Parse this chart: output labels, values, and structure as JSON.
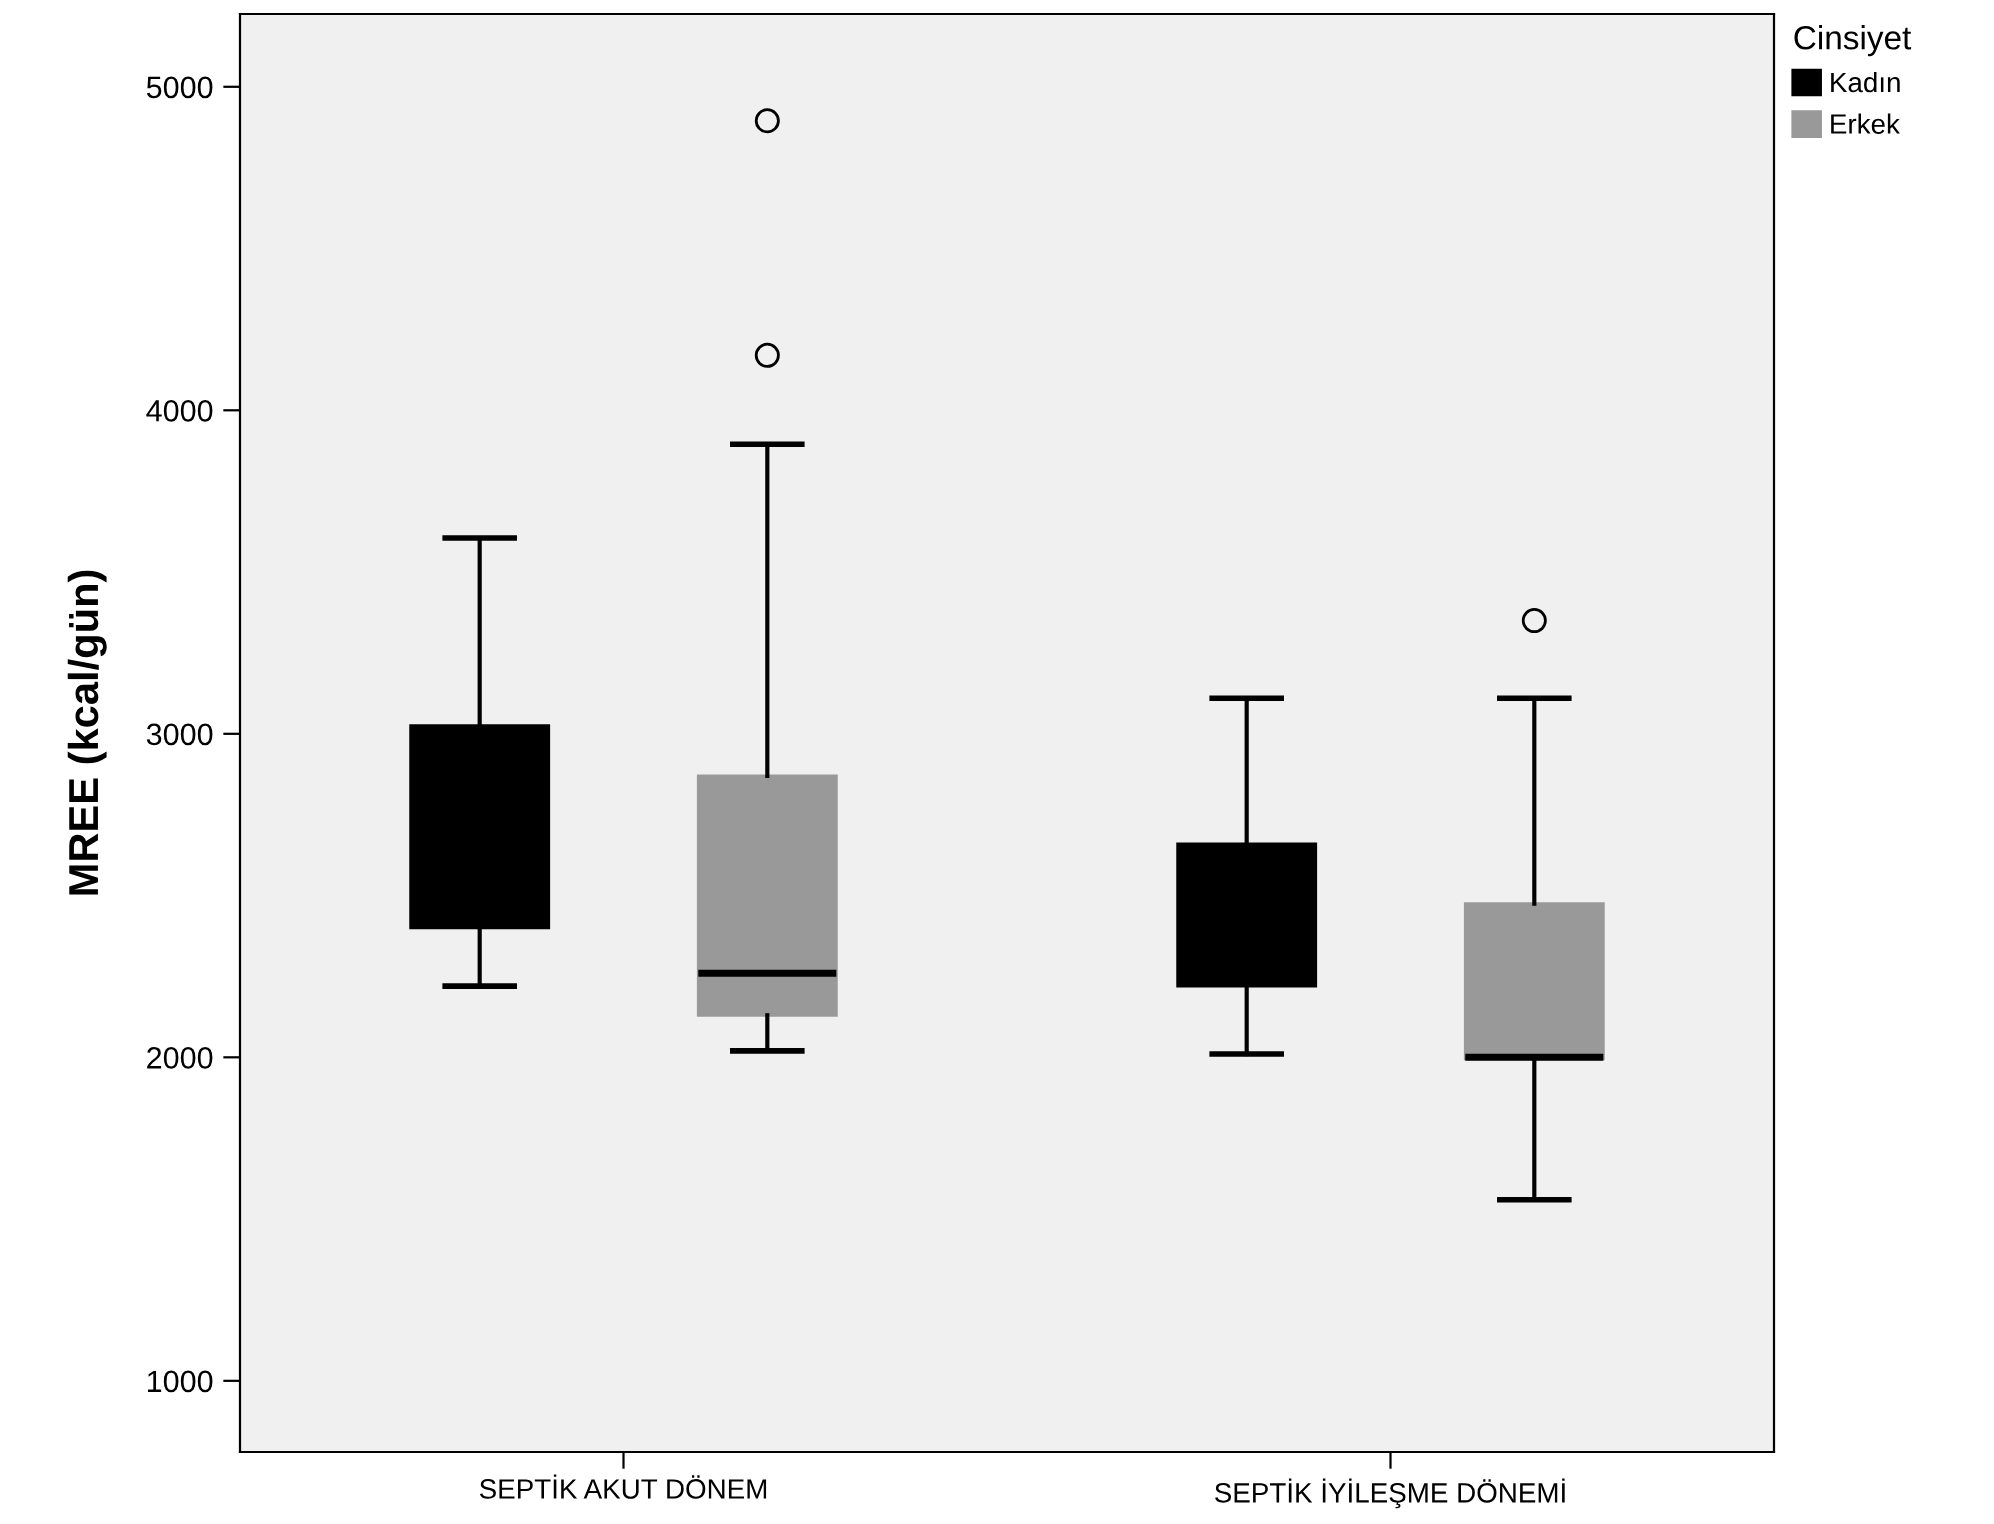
{
  "chart_data": {
    "type": "box",
    "ylabel": "MREE (kcal/gün)",
    "legend_title": "Cinsiyet",
    "legend": "top right",
    "categories": [
      "SEPTİK AKUT DÖNEM",
      "SEPTİK İYİLEŞME DÖNEMİ"
    ],
    "series": [
      {
        "name": "Kadın",
        "color": "#000000",
        "boxes": [
          {
            "low": 2220,
            "q1": 2400,
            "median": 2710,
            "q3": 3025,
            "high": 3605
          },
          {
            "low": 2010,
            "q1": 2220,
            "median": 2460,
            "q3": 2660,
            "high": 3110
          }
        ]
      },
      {
        "name": "Erkek",
        "color": "#999999",
        "boxes": [
          {
            "low": 2020,
            "q1": 2130,
            "median": 2260,
            "q3": 2870,
            "high": 3895,
            "outliers": [
              4170,
              4895
            ]
          },
          {
            "low": 1560,
            "q1": 1995,
            "median": 2000,
            "q3": 2475,
            "high": 3110,
            "outliers": [
              3350
            ]
          }
        ]
      }
    ],
    "ylim": [
      780,
      5225
    ],
    "yticks": [
      1000,
      2000,
      3000,
      4000,
      5000
    ],
    "grid": false
  }
}
